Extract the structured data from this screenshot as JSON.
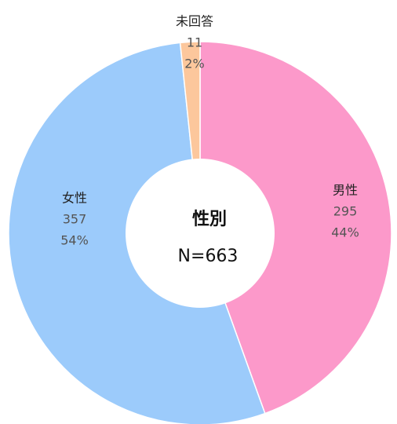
{
  "chart_data": {
    "type": "donut",
    "center_title": "性別",
    "center_label": "N=663",
    "categories": [
      "男性",
      "女性",
      "未回答"
    ],
    "values": [
      295,
      357,
      11
    ],
    "shares": [
      44,
      54,
      2
    ],
    "share_labels": [
      "44%",
      "54%",
      "2%"
    ],
    "colors": [
      "#fc99ca",
      "#9ccbfb",
      "#fcc79c"
    ]
  }
}
